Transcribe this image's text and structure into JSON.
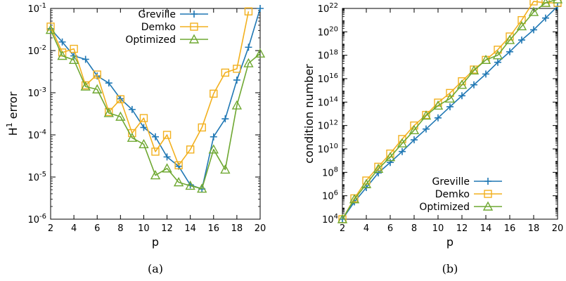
{
  "colors": {
    "greville": "#1f77b4",
    "demko": "#f2b01e",
    "optimized": "#6fa832"
  },
  "chart_data": [
    {
      "type": "line",
      "caption": "(a)",
      "xlabel": "p",
      "ylabel": "H",
      "ylabel_sup": "1",
      "ylabel_rest": " error",
      "yscale": "log",
      "xlim": [
        2,
        20
      ],
      "ylim_exp": [
        -6,
        -1
      ],
      "legend_position": "top-right",
      "x_ticks": [
        "2",
        "4",
        "6",
        "8",
        "10",
        "12",
        "14",
        "16",
        "18",
        "20"
      ],
      "y_ticks": [
        {
          "exp": -6,
          "base": "10",
          "sup": "-6"
        },
        {
          "exp": -5,
          "base": "10",
          "sup": "-5"
        },
        {
          "exp": -4,
          "base": "10",
          "sup": "-4"
        },
        {
          "exp": -3,
          "base": "10",
          "sup": "-3"
        },
        {
          "exp": -2,
          "base": "10",
          "sup": "-2"
        },
        {
          "exp": -1,
          "base": "10",
          "sup": "-1"
        }
      ],
      "x": [
        2,
        3,
        4,
        5,
        6,
        7,
        8,
        9,
        10,
        11,
        12,
        13,
        14,
        15,
        16,
        17,
        18,
        19,
        20
      ],
      "series": [
        {
          "name": "Greville",
          "marker": "plus",
          "color_key": "greville",
          "values": [
            0.033,
            0.016,
            0.0075,
            0.0062,
            0.0025,
            0.0017,
            0.00072,
            0.0004,
            0.00015,
            9e-05,
            3e-05,
            1.8e-05,
            6.5e-06,
            5.2e-06,
            9e-05,
            0.00024,
            0.002,
            0.012,
            0.1
          ]
        },
        {
          "name": "Demko",
          "marker": "square",
          "color_key": "demko",
          "values": [
            0.037,
            0.009,
            0.011,
            0.0015,
            0.0027,
            0.00035,
            0.0007,
            0.00011,
            0.00025,
            4e-05,
            0.0001,
            1.9e-05,
            4.5e-05,
            0.00015,
            0.00095,
            0.003,
            0.0037,
            0.085,
            null
          ]
        },
        {
          "name": "Optimized",
          "marker": "triangle",
          "color_key": "optimized",
          "values": [
            0.031,
            0.0075,
            0.006,
            0.0014,
            0.0012,
            0.00033,
            0.00027,
            8.5e-05,
            6e-05,
            1.1e-05,
            1.6e-05,
            7.5e-06,
            6.2e-06,
            5.3e-06,
            4.5e-05,
            1.5e-05,
            0.0005,
            0.005,
            0.0085
          ]
        }
      ]
    },
    {
      "type": "line",
      "caption": "(b)",
      "xlabel": "p",
      "ylabel": "condition number",
      "yscale": "log",
      "xlim": [
        2,
        20
      ],
      "ylim_exp": [
        4,
        22
      ],
      "legend_position": "bottom-right",
      "x_ticks": [
        "2",
        "4",
        "6",
        "8",
        "10",
        "12",
        "14",
        "16",
        "18",
        "20"
      ],
      "y_ticks": [
        {
          "exp": 4,
          "base": "10",
          "sup": "4"
        },
        {
          "exp": 6,
          "base": "10",
          "sup": "6"
        },
        {
          "exp": 8,
          "base": "10",
          "sup": "8"
        },
        {
          "exp": 10,
          "base": "10",
          "sup": "10"
        },
        {
          "exp": 12,
          "base": "10",
          "sup": "12"
        },
        {
          "exp": 14,
          "base": "10",
          "sup": "14"
        },
        {
          "exp": 16,
          "base": "10",
          "sup": "16"
        },
        {
          "exp": 18,
          "base": "10",
          "sup": "18"
        },
        {
          "exp": 20,
          "base": "10",
          "sup": "20"
        },
        {
          "exp": 22,
          "base": "10",
          "sup": "22"
        }
      ],
      "x": [
        2,
        3,
        4,
        5,
        6,
        7,
        8,
        9,
        10,
        11,
        12,
        13,
        14,
        15,
        16,
        17,
        18,
        19,
        20
      ],
      "series": [
        {
          "name": "Greville",
          "marker": "plus",
          "color_key": "greville",
          "values": [
            10000.0,
            300000.0,
            5000000.0,
            90000000.0,
            700000000.0,
            6000000000.0,
            60000000000.0,
            500000000000.0,
            4500000000000.0,
            40000000000000.0,
            350000000000000.0,
            3000000000000000.0,
            2.5e+16,
            2.5e+17,
            2e+18,
            2e+19,
            1.5e+20,
            1.5e+21,
            1.5e+22
          ]
        },
        {
          "name": "Demko",
          "marker": "square",
          "color_key": "demko",
          "values": [
            10000.0,
            600000.0,
            20000000.0,
            300000000.0,
            4000000000.0,
            70000000000.0,
            1000000000000.0,
            8000000000000.0,
            90000000000000.0,
            600000000000000.0,
            6000000000000000.0,
            6e+16,
            4e+17,
            3e+18,
            4e+19,
            1e+21,
            4e+22,
            3e+22,
            3e+22
          ]
        },
        {
          "name": "Optimized",
          "marker": "triangle",
          "color_key": "optimized",
          "values": [
            10000.0,
            500000.0,
            10000000.0,
            200000000.0,
            2000000000.0,
            30000000000.0,
            400000000000.0,
            7000000000000.0,
            50000000000000.0,
            200000000000000.0,
            3000000000000000.0,
            5e+16,
            4e+17,
            1e+18,
            2e+19,
            3e+20,
            5e+21,
            3e+22,
            6e+22
          ]
        }
      ]
    }
  ]
}
